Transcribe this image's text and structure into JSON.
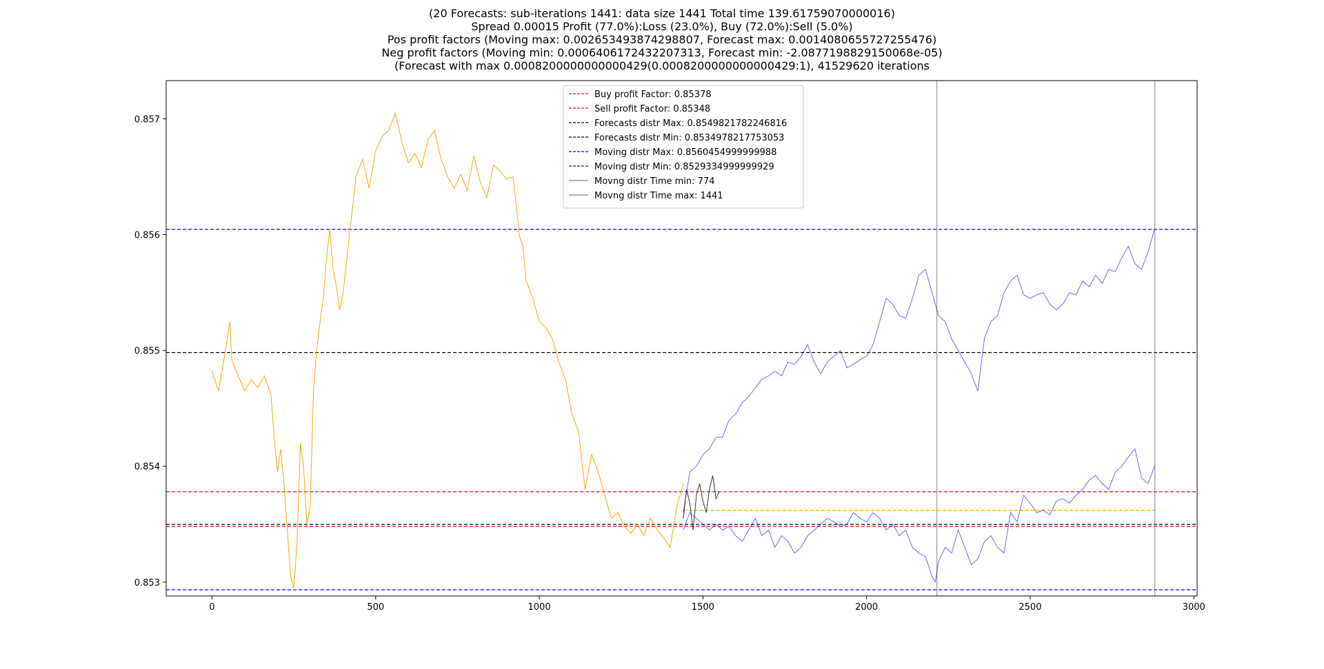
{
  "title_lines": [
    "(20 Forecasts: sub-iterations 1441: data size 1441 Total time 139.61759070000016)",
    "Spread 0.00015 Profit (77.0%):Loss (23.0%), Buy (72.0%):Sell (5.0%)",
    "Pos profit factors (Moving max: 0.002653493874298807, Forecast max: 0.0014080655727255476)",
    "Neg profit factors (Moving min: 0.0006406172432207313, Forecast min: -2.0877198829150068e-05)",
    "(Forecast with max 0.0008200000000000429(0.0008200000000000429:1), 41529620 iterations"
  ],
  "chart_data": {
    "type": "line",
    "xlim": [
      -140,
      3010
    ],
    "ylim": [
      0.85288,
      0.85733
    ],
    "x_ticks": [
      0,
      500,
      1000,
      1500,
      2000,
      2500,
      3000
    ],
    "y_ticks": [
      0.853,
      0.854,
      0.855,
      0.856,
      0.857
    ],
    "x_tick_labels": [
      "0",
      "500",
      "1000",
      "1500",
      "2000",
      "2500",
      "3000"
    ],
    "y_tick_labels": [
      "0.853",
      "0.854",
      "0.855",
      "0.856",
      "0.857"
    ],
    "grid": false,
    "legend_placement": "upper center",
    "series": [
      {
        "color": "#ffa500",
        "x": [
          0,
          20,
          40,
          55,
          60,
          80,
          100,
          120,
          140,
          160,
          180,
          190,
          200,
          210,
          220,
          230,
          240,
          250,
          260,
          270,
          280,
          290,
          300,
          310,
          320,
          330,
          340,
          350,
          360,
          370,
          380,
          390,
          400,
          420,
          440,
          460,
          480,
          500,
          520,
          540,
          560,
          580,
          600,
          620,
          640,
          660,
          680,
          700,
          720,
          740,
          760,
          780,
          800,
          820,
          840,
          860,
          880,
          900,
          920,
          940,
          950,
          960,
          980,
          1000,
          1020,
          1040,
          1060,
          1080,
          1100,
          1120,
          1140,
          1160,
          1180,
          1200,
          1220,
          1240,
          1260,
          1280,
          1300,
          1320,
          1340,
          1360,
          1380,
          1400,
          1420,
          1440
        ],
        "y": [
          0.85482,
          0.85465,
          0.85498,
          0.85525,
          0.85492,
          0.85478,
          0.85465,
          0.85475,
          0.85468,
          0.85478,
          0.85462,
          0.85425,
          0.85395,
          0.85415,
          0.85385,
          0.85345,
          0.85305,
          0.85295,
          0.85335,
          0.8542,
          0.85398,
          0.8535,
          0.85365,
          0.85465,
          0.855,
          0.85525,
          0.85545,
          0.8558,
          0.85605,
          0.8557,
          0.85555,
          0.85535,
          0.85548,
          0.856,
          0.8565,
          0.85665,
          0.8564,
          0.85672,
          0.85685,
          0.8569,
          0.85705,
          0.8568,
          0.85662,
          0.8567,
          0.85658,
          0.85682,
          0.8569,
          0.85665,
          0.8565,
          0.8564,
          0.85652,
          0.85638,
          0.85668,
          0.85645,
          0.85632,
          0.8566,
          0.85655,
          0.85648,
          0.8565,
          0.85598,
          0.8559,
          0.8556,
          0.85545,
          0.85525,
          0.8552,
          0.8551,
          0.8549,
          0.85475,
          0.85445,
          0.8543,
          0.8538,
          0.8541,
          0.85395,
          0.85375,
          0.85355,
          0.8536,
          0.85348,
          0.85342,
          0.8535,
          0.8534,
          0.85355,
          0.85345,
          0.85338,
          0.8533,
          0.85365,
          0.85385
        ]
      },
      {
        "color": "#0000ff",
        "x": [
          1440,
          1460,
          1480,
          1500,
          1520,
          1540,
          1560,
          1580,
          1600,
          1620,
          1640,
          1660,
          1680,
          1700,
          1720,
          1740,
          1760,
          1780,
          1800,
          1820,
          1840,
          1860,
          1880,
          1900,
          1920,
          1940,
          1960,
          1980,
          2000,
          2020,
          2040,
          2060,
          2080,
          2100,
          2120,
          2140,
          2160,
          2180,
          2200,
          2220,
          2240,
          2260,
          2280,
          2300,
          2320,
          2340,
          2360,
          2380,
          2400,
          2420,
          2440,
          2460,
          2480,
          2500,
          2520,
          2540,
          2560,
          2580,
          2600,
          2620,
          2640,
          2660,
          2680,
          2700,
          2720,
          2740,
          2760,
          2780,
          2800,
          2820,
          2840,
          2860,
          2880
        ],
        "y": [
          0.8536,
          0.85395,
          0.854,
          0.8541,
          0.85415,
          0.85425,
          0.85425,
          0.8544,
          0.85445,
          0.85455,
          0.8546,
          0.85468,
          0.85475,
          0.85478,
          0.85482,
          0.85478,
          0.8549,
          0.85488,
          0.85495,
          0.85505,
          0.8549,
          0.8548,
          0.8549,
          0.85495,
          0.855,
          0.85485,
          0.85488,
          0.85492,
          0.85495,
          0.85505,
          0.85525,
          0.85545,
          0.8554,
          0.8553,
          0.85528,
          0.85545,
          0.85565,
          0.8557,
          0.8555,
          0.8553,
          0.85525,
          0.8551,
          0.855,
          0.8549,
          0.8548,
          0.85465,
          0.8551,
          0.85525,
          0.8553,
          0.8555,
          0.8556,
          0.85565,
          0.85548,
          0.85545,
          0.85548,
          0.8555,
          0.8554,
          0.85535,
          0.8554,
          0.8555,
          0.85548,
          0.8556,
          0.85555,
          0.85565,
          0.85558,
          0.8557,
          0.85568,
          0.8558,
          0.8559,
          0.85575,
          0.8557,
          0.85585,
          0.85605
        ]
      },
      {
        "color": "#0000ff",
        "x": [
          1440,
          1460,
          1480,
          1500,
          1520,
          1540,
          1560,
          1580,
          1600,
          1620,
          1640,
          1660,
          1680,
          1700,
          1720,
          1740,
          1760,
          1780,
          1800,
          1820,
          1840,
          1860,
          1880,
          1900,
          1920,
          1940,
          1960,
          1980,
          2000,
          2020,
          2040,
          2060,
          2080,
          2100,
          2120,
          2140,
          2160,
          2180,
          2200,
          2210,
          2220,
          2240,
          2260,
          2280,
          2300,
          2320,
          2340,
          2360,
          2380,
          2400,
          2420,
          2440,
          2460,
          2480,
          2500,
          2520,
          2540,
          2560,
          2580,
          2600,
          2620,
          2640,
          2660,
          2680,
          2700,
          2720,
          2740,
          2760,
          2780,
          2800,
          2820,
          2840,
          2860,
          2880
        ],
        "y": [
          0.85345,
          0.8536,
          0.85355,
          0.8535,
          0.85345,
          0.8535,
          0.85345,
          0.85348,
          0.8534,
          0.85335,
          0.85345,
          0.85355,
          0.8534,
          0.85345,
          0.8533,
          0.8534,
          0.85335,
          0.85325,
          0.8533,
          0.8534,
          0.85345,
          0.8535,
          0.85355,
          0.85352,
          0.85348,
          0.8535,
          0.8536,
          0.85355,
          0.85352,
          0.8536,
          0.85355,
          0.85345,
          0.8535,
          0.8534,
          0.85345,
          0.8533,
          0.85325,
          0.85322,
          0.85305,
          0.853,
          0.85318,
          0.8533,
          0.85325,
          0.85345,
          0.8533,
          0.85315,
          0.8532,
          0.85335,
          0.8534,
          0.8533,
          0.85325,
          0.8536,
          0.85352,
          0.85375,
          0.85368,
          0.8536,
          0.85362,
          0.85358,
          0.8537,
          0.85372,
          0.85368,
          0.85375,
          0.8538,
          0.85388,
          0.85392,
          0.85385,
          0.8538,
          0.85395,
          0.854,
          0.85408,
          0.85415,
          0.8539,
          0.85385,
          0.854
        ]
      },
      {
        "color": "#333333",
        "x": [
          1440,
          1450,
          1460,
          1470,
          1480,
          1490,
          1500,
          1510,
          1520,
          1530,
          1540,
          1550
        ],
        "y": [
          0.85355,
          0.8538,
          0.85368,
          0.85345,
          0.85375,
          0.85385,
          0.8537,
          0.8536,
          0.8538,
          0.85392,
          0.85372,
          0.85378
        ]
      }
    ],
    "hlines": [
      {
        "y": 0.8560454999999988,
        "color": "#0000ff",
        "dash": true
      },
      {
        "y": 0.8529334999999929,
        "color": "#0000ff",
        "dash": true
      },
      {
        "y": 0.8549821782246816,
        "color": "#000000",
        "dash": true
      },
      {
        "y": 0.8534978217753053,
        "color": "#000000",
        "dash": true
      },
      {
        "y": 0.85378,
        "color": "#ff0000",
        "dash": true
      },
      {
        "y": 0.85348,
        "color": "#ff0000",
        "dash": true
      }
    ],
    "segments": [
      {
        "x1": 1440,
        "x2": 2880,
        "y": 0.85362,
        "color": "#ffa500",
        "dash": true
      }
    ],
    "vlines": [
      {
        "x": 2215,
        "color": "#808080"
      },
      {
        "x": 2881,
        "color": "#808080"
      }
    ],
    "legend": [
      {
        "label": "Buy profit Factor: 0.85378",
        "color": "#ff0000",
        "dash": true
      },
      {
        "label": "Sell profit Factor: 0.85348",
        "color": "#ff0000",
        "dash": true
      },
      {
        "label": "Forecasts distr Max: 0.8549821782246816",
        "color": "#000000",
        "dash": true
      },
      {
        "label": "Forecasts distr Min: 0.8534978217753053",
        "color": "#000000",
        "dash": true
      },
      {
        "label": "Moving distr Max: 0.8560454999999988",
        "color": "#0000ff",
        "dash": true
      },
      {
        "label": "Moving distr Min: 0.8529334999999929",
        "color": "#0000ff",
        "dash": true
      },
      {
        "label": "Movng distr Time min: 774",
        "color": "#808080",
        "dash": false
      },
      {
        "label": "Movng distr Time max: 1441",
        "color": "#808080",
        "dash": false
      }
    ]
  }
}
